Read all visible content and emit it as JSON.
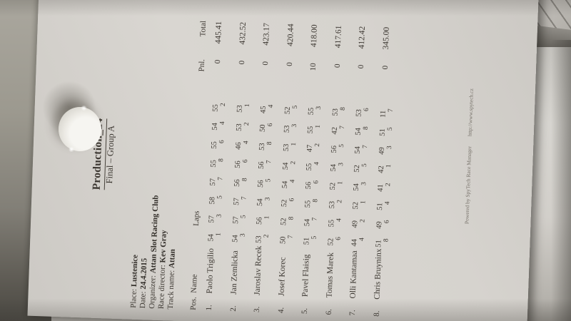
{
  "colors": {
    "paper": "#d6d3ce",
    "ink": "#3d3832",
    "desk_surface": "#9c998f",
    "desk_shadow": "#4b4943",
    "right_sheet": "#d2cfca",
    "cap": "#f2f1ed"
  },
  "document": {
    "title": "Production_24",
    "subtitle": "Final – Group A",
    "info": [
      {
        "label": "Place:",
        "value": "Lustenice"
      },
      {
        "label": "Date:",
        "value": "24.4.2015"
      },
      {
        "label": "Organizer:",
        "value": "Attan Slot Racing Club"
      },
      {
        "label": "Race director:",
        "value": "Kev Gray"
      },
      {
        "label": "Track name:",
        "value": "Attan"
      }
    ],
    "table": {
      "headers": {
        "pos": "Pos.",
        "name": "Name",
        "laps": "Laps",
        "pnl": "Pnl.",
        "total": "Total"
      },
      "rows": [
        {
          "pos": "1.",
          "name": "Paolo Trigilio",
          "laps": [
            [
              54,
              1
            ],
            [
              57,
              3
            ],
            [
              58,
              5
            ],
            [
              57,
              7
            ],
            [
              55,
              8
            ],
            [
              55,
              6
            ],
            [
              54,
              4
            ],
            [
              55,
              2
            ]
          ],
          "pnl": "0",
          "total": "445.41"
        },
        {
          "pos": "2.",
          "name": "Jan Zemlicka",
          "laps": [
            [
              54,
              3
            ],
            [
              57,
              5
            ],
            [
              57,
              7
            ],
            [
              56,
              8
            ],
            [
              56,
              6
            ],
            [
              46,
              4
            ],
            [
              53,
              2
            ],
            [
              53,
              1
            ]
          ],
          "pnl": "0",
          "total": "432.52"
        },
        {
          "pos": "3.",
          "name": "Jaroslav Recek",
          "laps": [
            [
              53,
              2
            ],
            [
              56,
              1
            ],
            [
              54,
              3
            ],
            [
              56,
              5
            ],
            [
              56,
              7
            ],
            [
              53,
              8
            ],
            [
              50,
              6
            ],
            [
              45,
              4
            ]
          ],
          "pnl": "0",
          "total": "423.17"
        },
        {
          "pos": "4.",
          "name": "Josef Korec",
          "laps": [
            [
              50,
              7
            ],
            [
              52,
              8
            ],
            [
              52,
              6
            ],
            [
              54,
              4
            ],
            [
              54,
              2
            ],
            [
              53,
              1
            ],
            [
              53,
              3
            ],
            [
              52,
              5
            ]
          ],
          "pnl": "0",
          "total": "420.44"
        },
        {
          "pos": "5.",
          "name": "Pavel Flaisig",
          "laps": [
            [
              51,
              5
            ],
            [
              54,
              7
            ],
            [
              55,
              8
            ],
            [
              56,
              6
            ],
            [
              55,
              4
            ],
            [
              47,
              2
            ],
            [
              55,
              1
            ],
            [
              55,
              3
            ]
          ],
          "pnl": "10",
          "total": "418.00"
        },
        {
          "pos": "6.",
          "name": "Tomas Marek",
          "laps": [
            [
              52,
              6
            ],
            [
              55,
              4
            ],
            [
              53,
              2
            ],
            [
              52,
              1
            ],
            [
              54,
              3
            ],
            [
              56,
              5
            ],
            [
              42,
              7
            ],
            [
              53,
              8
            ]
          ],
          "pnl": "0",
          "total": "417.61"
        },
        {
          "pos": "7.",
          "name": "Olli Kantamaa",
          "laps": [
            [
              44,
              4
            ],
            [
              49,
              2
            ],
            [
              52,
              1
            ],
            [
              54,
              3
            ],
            [
              52,
              5
            ],
            [
              54,
              7
            ],
            [
              54,
              8
            ],
            [
              53,
              6
            ]
          ],
          "pnl": "0",
          "total": "412.42"
        },
        {
          "pos": "8.",
          "name": "Chris Bruyninx",
          "laps": [
            [
              51,
              8
            ],
            [
              49,
              6
            ],
            [
              51,
              4
            ],
            [
              41,
              2
            ],
            [
              42,
              1
            ],
            [
              49,
              3
            ],
            [
              51,
              5
            ],
            [
              11,
              7
            ]
          ],
          "pnl": "0",
          "total": "345.00"
        }
      ]
    },
    "footer": {
      "powered": "Powered by SpyTech Race Manager",
      "url": "http://www.spytech.cz"
    }
  }
}
